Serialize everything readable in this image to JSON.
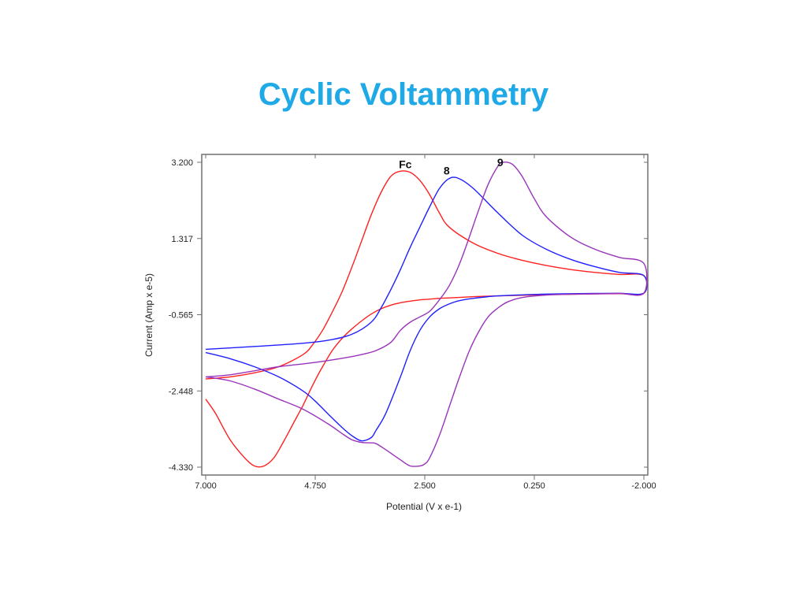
{
  "slide": {
    "title": "Cyclic Voltammetry"
  },
  "chart_data": {
    "type": "line",
    "title": "",
    "xlabel": "Potential (V x e-1)",
    "ylabel": "Current (Amp x e-5)",
    "xlim": [
      7.0,
      -2.0
    ],
    "ylim": [
      -4.33,
      3.2
    ],
    "x_ticks": [
      "7.000",
      "4.750",
      "2.500",
      "0.250",
      "-2.000"
    ],
    "x_tick_values": [
      7.0,
      4.75,
      2.5,
      0.25,
      -2.0
    ],
    "y_ticks": [
      "3.200",
      "1.317",
      "-0.565",
      "-2.448",
      "-4.330"
    ],
    "y_tick_values": [
      3.2,
      1.317,
      -0.565,
      -2.448,
      -4.33
    ],
    "grid": false,
    "legend": "none",
    "annotations": [
      {
        "text": "Fc",
        "x": 2.9,
        "y": 3.05
      },
      {
        "text": "8",
        "x": 2.05,
        "y": 2.9
      },
      {
        "text": "9",
        "x": 0.95,
        "y": 3.1
      }
    ],
    "series": [
      {
        "color": "#ff2020",
        "x": [
          7.0,
          6.8,
          6.5,
          6.2,
          6.0,
          5.8,
          5.6,
          5.4,
          5.2,
          5.0,
          4.8,
          4.6,
          4.4,
          4.2,
          4.0,
          3.8,
          3.6,
          3.4,
          3.2,
          3.0,
          2.8,
          2.6,
          2.4,
          2.2,
          2.0,
          1.5,
          1.0,
          0.5,
          0.0,
          -0.5,
          -1.0,
          -1.5,
          -2.0,
          -2.0,
          -1.5,
          -1.0,
          -0.5,
          0.0,
          0.5,
          1.0,
          1.5,
          2.0,
          2.2,
          2.4,
          2.6,
          2.8,
          3.0,
          3.2,
          3.4,
          3.6,
          3.8,
          4.0,
          4.2,
          4.4,
          4.6,
          4.8,
          5.0,
          5.5,
          6.0,
          6.5,
          7.0
        ],
        "y": [
          -2.65,
          -3.0,
          -3.65,
          -4.1,
          -4.3,
          -4.3,
          -4.1,
          -3.7,
          -3.25,
          -2.8,
          -2.3,
          -1.85,
          -1.45,
          -1.15,
          -0.92,
          -0.72,
          -0.55,
          -0.42,
          -0.33,
          -0.27,
          -0.23,
          -0.2,
          -0.18,
          -0.16,
          -0.15,
          -0.12,
          -0.1,
          -0.085,
          -0.07,
          -0.06,
          -0.05,
          -0.045,
          -0.04,
          0.4,
          0.43,
          0.48,
          0.55,
          0.65,
          0.78,
          0.95,
          1.2,
          1.6,
          1.95,
          2.4,
          2.75,
          2.95,
          2.98,
          2.85,
          2.45,
          1.9,
          1.25,
          0.6,
          0.0,
          -0.5,
          -0.95,
          -1.3,
          -1.55,
          -1.85,
          -2.0,
          -2.1,
          -2.15
        ]
      },
      {
        "color": "#2020ff",
        "x": [
          7.0,
          6.5,
          6.0,
          5.5,
          5.0,
          4.75,
          4.5,
          4.2,
          4.0,
          3.8,
          3.6,
          3.5,
          3.3,
          3.0,
          2.8,
          2.6,
          2.4,
          2.2,
          2.0,
          1.8,
          1.5,
          1.2,
          1.0,
          0.5,
          0.0,
          -0.5,
          -1.0,
          -1.5,
          -2.0,
          -2.0,
          -1.5,
          -1.0,
          -0.5,
          0.0,
          0.5,
          1.0,
          1.5,
          1.8,
          2.0,
          2.2,
          2.4,
          2.6,
          2.8,
          3.0,
          3.2,
          3.4,
          3.6,
          4.0,
          4.5,
          5.0,
          6.0,
          7.0
        ],
        "y": [
          -1.5,
          -1.65,
          -1.85,
          -2.1,
          -2.45,
          -2.7,
          -3.0,
          -3.35,
          -3.55,
          -3.68,
          -3.6,
          -3.42,
          -3.0,
          -2.1,
          -1.45,
          -0.95,
          -0.62,
          -0.42,
          -0.3,
          -0.22,
          -0.16,
          -0.12,
          -0.1,
          -0.075,
          -0.055,
          -0.045,
          -0.04,
          -0.035,
          -0.03,
          0.4,
          0.48,
          0.62,
          0.8,
          1.05,
          1.4,
          1.95,
          2.55,
          2.8,
          2.8,
          2.55,
          2.1,
          1.6,
          1.1,
          0.55,
          0.05,
          -0.4,
          -0.75,
          -1.05,
          -1.2,
          -1.27,
          -1.35,
          -1.42
        ]
      },
      {
        "color": "#9933bb",
        "x": [
          7.0,
          6.5,
          6.0,
          5.5,
          5.0,
          4.5,
          4.2,
          4.0,
          3.8,
          3.6,
          3.5,
          3.3,
          3.0,
          2.8,
          2.6,
          2.5,
          2.4,
          2.2,
          2.0,
          1.8,
          1.6,
          1.4,
          1.2,
          1.0,
          0.8,
          0.5,
          0.0,
          -0.5,
          -1.0,
          -1.5,
          -2.0,
          -2.0,
          -1.5,
          -1.0,
          -0.5,
          0.0,
          0.25,
          0.5,
          0.7,
          0.9,
          1.0,
          1.2,
          1.4,
          1.6,
          1.8,
          2.0,
          2.2,
          2.4,
          2.6,
          2.8,
          3.0,
          3.2,
          3.5,
          3.8,
          4.0,
          4.5,
          5.0,
          5.5,
          6.0,
          6.5,
          7.0
        ],
        "y": [
          -2.1,
          -2.2,
          -2.4,
          -2.65,
          -2.9,
          -3.25,
          -3.5,
          -3.65,
          -3.72,
          -3.73,
          -3.75,
          -3.9,
          -4.15,
          -4.3,
          -4.3,
          -4.25,
          -4.1,
          -3.55,
          -2.85,
          -2.15,
          -1.5,
          -1.0,
          -0.62,
          -0.4,
          -0.25,
          -0.14,
          -0.08,
          -0.06,
          -0.05,
          -0.04,
          -0.03,
          0.7,
          0.85,
          1.05,
          1.35,
          1.85,
          2.3,
          2.85,
          3.15,
          3.2,
          3.1,
          2.65,
          2.0,
          1.3,
          0.65,
          0.15,
          -0.2,
          -0.48,
          -0.62,
          -0.75,
          -0.95,
          -1.25,
          -1.45,
          -1.55,
          -1.6,
          -1.7,
          -1.78,
          -1.85,
          -1.95,
          -2.05,
          -2.1
        ]
      }
    ]
  }
}
